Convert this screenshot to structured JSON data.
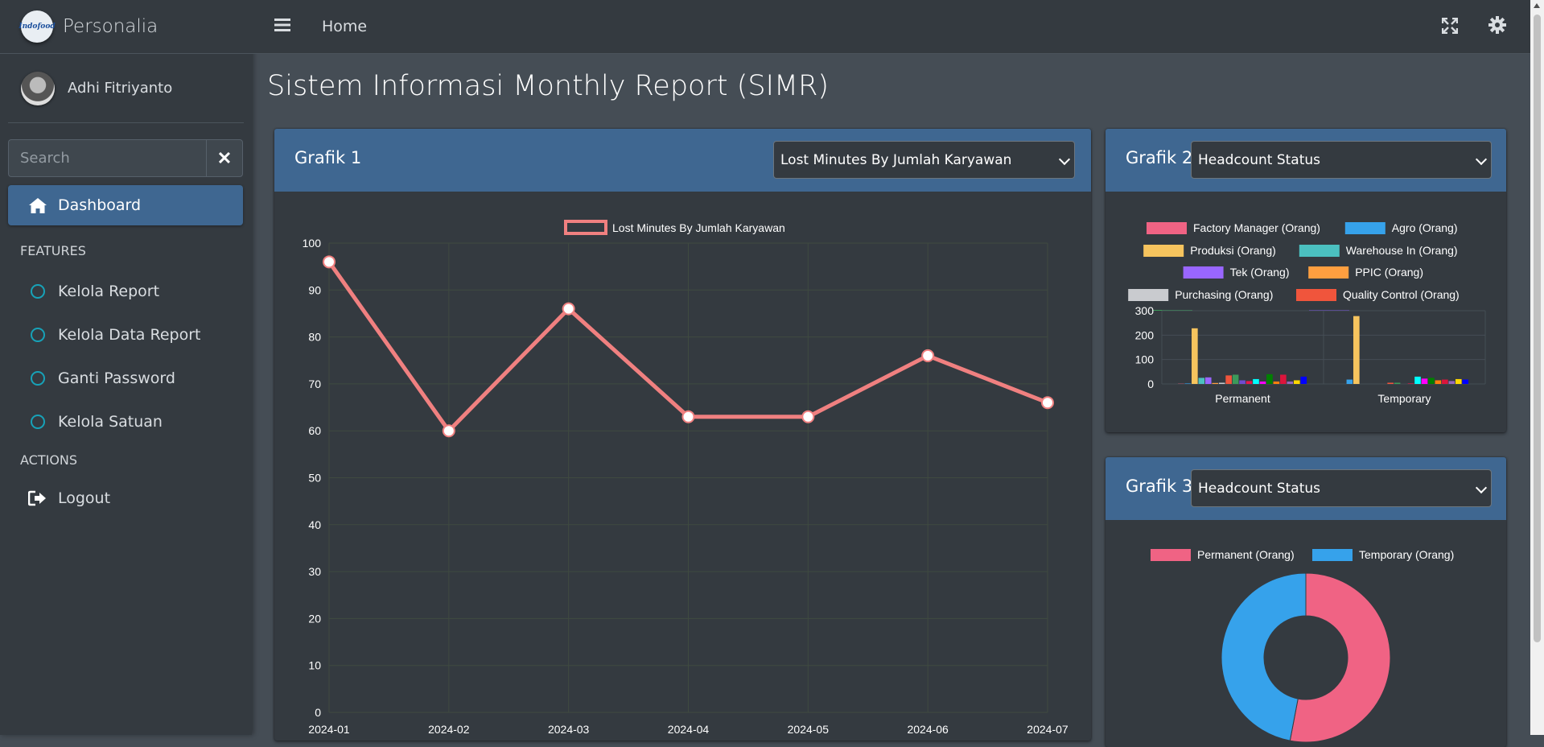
{
  "brand": {
    "name": "Personalia",
    "logo_text": "Indofood"
  },
  "user": {
    "name": "Adhi Fitriyanto"
  },
  "search": {
    "placeholder": "Search"
  },
  "sidebar": {
    "active": {
      "label": "Dashboard"
    },
    "features_header": "FEATURES",
    "features": [
      {
        "label": "Kelola Report"
      },
      {
        "label": "Kelola Data Report"
      },
      {
        "label": "Ganti Password"
      },
      {
        "label": "Kelola Satuan"
      }
    ],
    "actions_header": "ACTIONS",
    "logout": {
      "label": "Logout"
    }
  },
  "topbar": {
    "home": "Home"
  },
  "page": {
    "title": "Sistem Informasi Monthly Report (SIMR)"
  },
  "colors": {
    "sidebar": "#343a40",
    "accent": "#3f6791",
    "body": "#454d55",
    "line": "#f08080"
  },
  "cards": {
    "grafik1": {
      "title": "Grafik 1",
      "select_value": "Lost Minutes By Jumlah Karyawan"
    },
    "grafik2": {
      "title": "Grafik 2",
      "select_value": "Headcount Status"
    },
    "grafik3": {
      "title": "Grafik 3",
      "select_value": "Headcount Status"
    }
  },
  "chart_data": [
    {
      "type": "line",
      "legend": [
        "Lost Minutes By Jumlah Karyawan"
      ],
      "x": [
        "2024-01",
        "2024-02",
        "2024-03",
        "2024-04",
        "2024-05",
        "2024-06",
        "2024-07"
      ],
      "series": [
        {
          "name": "Lost Minutes By Jumlah Karyawan",
          "values": [
            96,
            60,
            86,
            63,
            63,
            76,
            66
          ],
          "color": "#f08080"
        }
      ],
      "ylim": [
        0,
        100
      ],
      "yticks": [
        "0",
        "10",
        "20",
        "30",
        "40",
        "50",
        "60",
        "70",
        "80",
        "90",
        "100"
      ],
      "grid": true,
      "legend_position": "top"
    },
    {
      "type": "bar",
      "categories": [
        "Permanent",
        "Temporary"
      ],
      "ylim": [
        0,
        300
      ],
      "yticks": [
        "0",
        "100",
        "200",
        "300"
      ],
      "legend_position": "top",
      "series": [
        {
          "name": "Factory Manager (Orang)",
          "color": "#f06384",
          "values": [
            1,
            0
          ]
        },
        {
          "name": "Agro (Orang)",
          "color": "#36a2eb",
          "values": [
            2,
            18
          ]
        },
        {
          "name": "Produksi (Orang)",
          "color": "#f6c45e",
          "values": [
            228,
            278
          ]
        },
        {
          "name": "Warehouse In (Orang)",
          "color": "#4bc0c0",
          "values": [
            25,
            0
          ]
        },
        {
          "name": "Tek (Orang)",
          "color": "#9966ff",
          "values": [
            27,
            0
          ]
        },
        {
          "name": "PPIC (Orang)",
          "color": "#ff9f40",
          "values": [
            4,
            0
          ]
        },
        {
          "name": "Purchasing (Orang)",
          "color": "#c9cbcf",
          "values": [
            5,
            0
          ]
        },
        {
          "name": "Quality Control (Orang)",
          "color": "#f0553c",
          "values": [
            35,
            5
          ]
        },
        {
          "name": "",
          "color": "#3c9a5a",
          "values": [
            38,
            5
          ]
        },
        {
          "name": "",
          "color": "#6f4bd0",
          "values": [
            15,
            0
          ]
        },
        {
          "name": "",
          "color": "#e6194b",
          "values": [
            12,
            2
          ]
        },
        {
          "name": "",
          "color": "#00ffff",
          "values": [
            20,
            30
          ]
        },
        {
          "name": "",
          "color": "#ff00ff",
          "values": [
            10,
            22
          ]
        },
        {
          "name": "",
          "color": "#008000",
          "values": [
            40,
            25
          ]
        },
        {
          "name": "",
          "color": "#ff7f0e",
          "values": [
            10,
            15
          ]
        },
        {
          "name": "",
          "color": "#dc143c",
          "values": [
            38,
            18
          ]
        },
        {
          "name": "",
          "color": "#9467bd",
          "values": [
            10,
            12
          ]
        },
        {
          "name": "",
          "color": "#ffd700",
          "values": [
            15,
            20
          ]
        },
        {
          "name": "",
          "color": "#0000ff",
          "values": [
            30,
            18
          ]
        }
      ]
    },
    {
      "type": "pie",
      "donut": true,
      "labels": [
        "Permanent (Orang)",
        "Temporary (Orang)"
      ],
      "values": [
        53,
        47
      ],
      "colors": [
        "#f06384",
        "#36a2eb"
      ],
      "legend_position": "top"
    }
  ]
}
